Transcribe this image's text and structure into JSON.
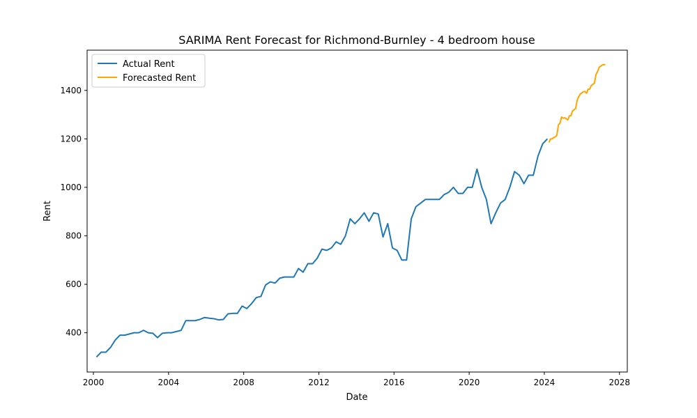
{
  "chart_data": {
    "type": "line",
    "title": "SARIMA Rent Forecast for Richmond-Burnley - 4 bedroom house",
    "xlabel": "Date",
    "ylabel": "Rent",
    "x_axis_type": "date",
    "xlim": [
      "1999-09-01",
      "2028-06-01"
    ],
    "ylim": [
      238,
      1566
    ],
    "x_ticks": [
      "2000",
      "2004",
      "2008",
      "2012",
      "2016",
      "2020",
      "2024",
      "2028"
    ],
    "y_ticks": [
      400,
      600,
      800,
      1000,
      1200,
      1400
    ],
    "grid": false,
    "legend_position": "top-left",
    "series": [
      {
        "name": "Actual Rent",
        "color": "#1f77b4",
        "points": [
          [
            "2000-03-01",
            300
          ],
          [
            "2000-06-01",
            320
          ],
          [
            "2000-09-01",
            320
          ],
          [
            "2000-12-01",
            340
          ],
          [
            "2001-03-01",
            370
          ],
          [
            "2001-06-01",
            390
          ],
          [
            "2001-09-01",
            390
          ],
          [
            "2001-12-01",
            395
          ],
          [
            "2002-03-01",
            400
          ],
          [
            "2002-06-01",
            400
          ],
          [
            "2002-09-01",
            410
          ],
          [
            "2002-12-01",
            400
          ],
          [
            "2003-03-01",
            398
          ],
          [
            "2003-06-01",
            380
          ],
          [
            "2003-09-01",
            398
          ],
          [
            "2003-12-01",
            400
          ],
          [
            "2004-03-01",
            400
          ],
          [
            "2004-06-01",
            405
          ],
          [
            "2004-09-01",
            410
          ],
          [
            "2004-12-01",
            450
          ],
          [
            "2005-03-01",
            450
          ],
          [
            "2005-06-01",
            450
          ],
          [
            "2005-09-01",
            455
          ],
          [
            "2005-12-01",
            463
          ],
          [
            "2006-03-01",
            460
          ],
          [
            "2006-06-01",
            458
          ],
          [
            "2006-09-01",
            453
          ],
          [
            "2006-12-01",
            455
          ],
          [
            "2007-03-01",
            478
          ],
          [
            "2007-06-01",
            480
          ],
          [
            "2007-09-01",
            480
          ],
          [
            "2007-12-01",
            510
          ],
          [
            "2008-03-01",
            500
          ],
          [
            "2008-06-01",
            520
          ],
          [
            "2008-09-01",
            545
          ],
          [
            "2008-12-01",
            550
          ],
          [
            "2009-03-01",
            597
          ],
          [
            "2009-06-01",
            610
          ],
          [
            "2009-09-01",
            605
          ],
          [
            "2009-12-01",
            625
          ],
          [
            "2010-03-01",
            630
          ],
          [
            "2010-06-01",
            630
          ],
          [
            "2010-09-01",
            630
          ],
          [
            "2010-12-01",
            665
          ],
          [
            "2011-03-01",
            650
          ],
          [
            "2011-06-01",
            685
          ],
          [
            "2011-09-01",
            685
          ],
          [
            "2011-12-01",
            708
          ],
          [
            "2012-03-01",
            745
          ],
          [
            "2012-06-01",
            740
          ],
          [
            "2012-09-01",
            750
          ],
          [
            "2012-12-01",
            775
          ],
          [
            "2013-03-01",
            765
          ],
          [
            "2013-06-01",
            800
          ],
          [
            "2013-09-01",
            870
          ],
          [
            "2013-12-01",
            850
          ],
          [
            "2014-03-01",
            870
          ],
          [
            "2014-06-01",
            895
          ],
          [
            "2014-09-01",
            860
          ],
          [
            "2014-12-01",
            895
          ],
          [
            "2015-03-01",
            890
          ],
          [
            "2015-06-01",
            795
          ],
          [
            "2015-09-01",
            850
          ],
          [
            "2015-12-01",
            750
          ],
          [
            "2016-03-01",
            740
          ],
          [
            "2016-06-01",
            700
          ],
          [
            "2016-09-01",
            700
          ],
          [
            "2016-12-01",
            870
          ],
          [
            "2017-03-01",
            920
          ],
          [
            "2017-06-01",
            935
          ],
          [
            "2017-09-01",
            950
          ],
          [
            "2017-12-01",
            950
          ],
          [
            "2018-03-01",
            950
          ],
          [
            "2018-06-01",
            950
          ],
          [
            "2018-09-01",
            970
          ],
          [
            "2018-12-01",
            980
          ],
          [
            "2019-03-01",
            1000
          ],
          [
            "2019-06-01",
            975
          ],
          [
            "2019-09-01",
            975
          ],
          [
            "2019-12-01",
            1000
          ],
          [
            "2020-03-01",
            1000
          ],
          [
            "2020-06-01",
            1075
          ],
          [
            "2020-09-01",
            1000
          ],
          [
            "2020-12-01",
            950
          ],
          [
            "2021-03-01",
            850
          ],
          [
            "2021-06-01",
            895
          ],
          [
            "2021-09-01",
            935
          ],
          [
            "2021-12-01",
            950
          ],
          [
            "2022-03-01",
            1000
          ],
          [
            "2022-06-01",
            1065
          ],
          [
            "2022-09-01",
            1050
          ],
          [
            "2022-12-01",
            1015
          ],
          [
            "2023-03-01",
            1050
          ],
          [
            "2023-06-01",
            1050
          ],
          [
            "2023-09-01",
            1130
          ],
          [
            "2023-12-01",
            1180
          ],
          [
            "2024-03-01",
            1200
          ]
        ]
      },
      {
        "name": "Forecasted Rent",
        "color": "#ffa500",
        "points": [
          [
            "2024-04-01",
            1185
          ],
          [
            "2024-05-01",
            1200
          ],
          [
            "2024-06-01",
            1200
          ],
          [
            "2024-07-01",
            1205
          ],
          [
            "2024-08-01",
            1208
          ],
          [
            "2024-09-01",
            1215
          ],
          [
            "2024-10-01",
            1258
          ],
          [
            "2024-11-01",
            1265
          ],
          [
            "2024-12-01",
            1290
          ],
          [
            "2025-01-01",
            1285
          ],
          [
            "2025-02-01",
            1287
          ],
          [
            "2025-03-01",
            1283
          ],
          [
            "2025-04-01",
            1278
          ],
          [
            "2025-05-01",
            1295
          ],
          [
            "2025-06-01",
            1295
          ],
          [
            "2025-07-01",
            1315
          ],
          [
            "2025-08-01",
            1320
          ],
          [
            "2025-09-01",
            1325
          ],
          [
            "2025-10-01",
            1360
          ],
          [
            "2025-11-01",
            1375
          ],
          [
            "2025-12-01",
            1385
          ],
          [
            "2026-01-01",
            1390
          ],
          [
            "2026-02-01",
            1395
          ],
          [
            "2026-03-01",
            1395
          ],
          [
            "2026-04-01",
            1388
          ],
          [
            "2026-05-01",
            1405
          ],
          [
            "2026-06-01",
            1405
          ],
          [
            "2026-07-01",
            1420
          ],
          [
            "2026-08-01",
            1425
          ],
          [
            "2026-09-01",
            1430
          ],
          [
            "2026-10-01",
            1465
          ],
          [
            "2026-11-01",
            1478
          ],
          [
            "2026-12-01",
            1495
          ],
          [
            "2027-01-01",
            1500
          ],
          [
            "2027-02-01",
            1505
          ],
          [
            "2027-03-01",
            1507
          ],
          [
            "2027-04-01",
            1505
          ]
        ]
      }
    ]
  }
}
